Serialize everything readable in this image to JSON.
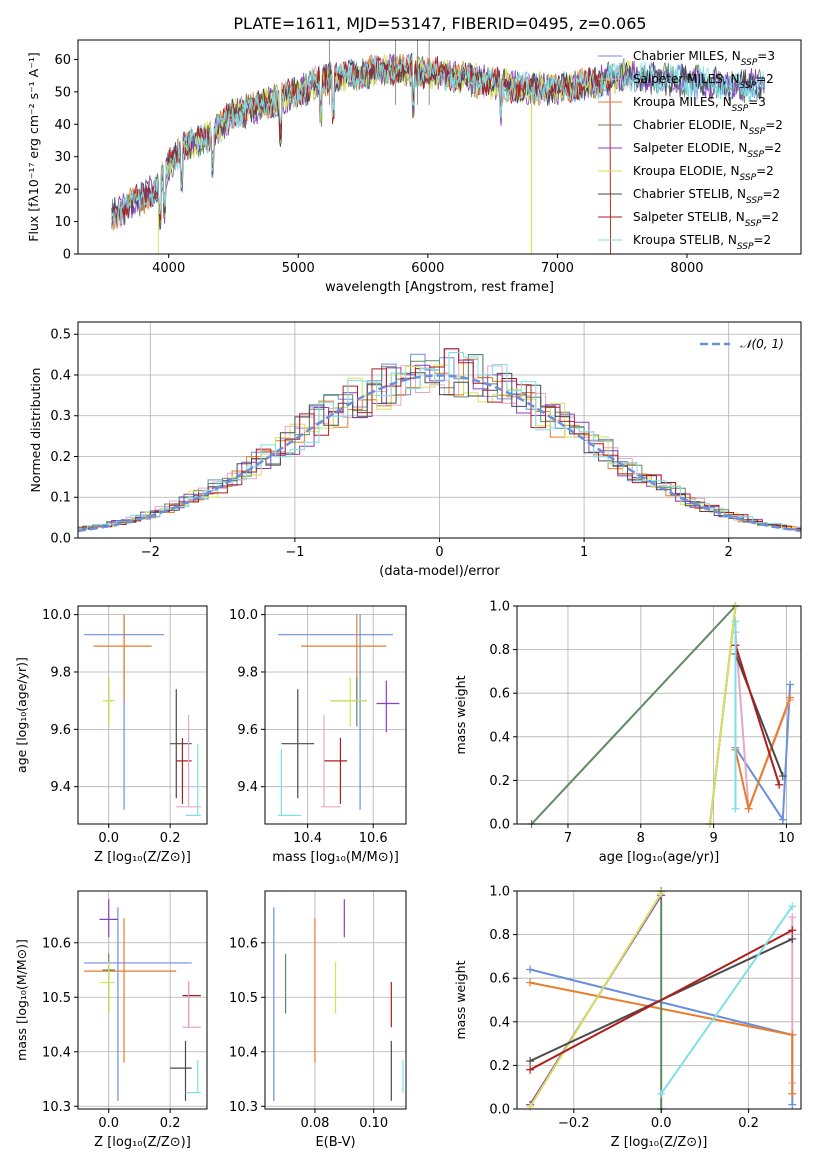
{
  "figure": {
    "title": "PLATE=1611, MJD=53147, FIBERID=0495, z=0.065"
  },
  "colors": {
    "c1": "#6b8fdc",
    "c2": "#e6a8c8",
    "c3": "#e87d2a",
    "c4": "#5e8a62",
    "c5": "#8c3fc0",
    "c6": "#d6e25a",
    "c7": "#4a4a4a",
    "c8": "#b01c1c",
    "c9": "#7fdfe6"
  },
  "chart_data": [
    {
      "id": "spectrum",
      "type": "line",
      "title": "PLATE=1611, MJD=53147, FIBERID=0495, z=0.065",
      "xlabel": "wavelength [Angstrom, rest frame]",
      "ylabel": "Flux [fλ10⁻¹⁷ erg cm⁻² s⁻¹ A⁻¹]",
      "xlim": [
        3300,
        8880
      ],
      "ylim": [
        0,
        66
      ],
      "xticks": [
        "4000",
        "5000",
        "6000",
        "7000",
        "8000"
      ],
      "yticks": [
        "0",
        "10",
        "20",
        "30",
        "40",
        "50",
        "60"
      ],
      "legend_position": "right",
      "series": [
        {
          "name": "Chabrier MILES, N_SSP=3",
          "color_key": "c1"
        },
        {
          "name": "Salpeter MILES, N_SSP=2",
          "color_key": "c2"
        },
        {
          "name": "Kroupa MILES, N_SSP=3",
          "color_key": "c3"
        },
        {
          "name": "Chabrier ELODIE, N_SSP=2",
          "color_key": "c4"
        },
        {
          "name": "Salpeter ELODIE, N_SSP=2",
          "color_key": "c5"
        },
        {
          "name": "Kroupa ELODIE, N_SSP=2",
          "color_key": "c6"
        },
        {
          "name": "Chabrier STELIB, N_SSP=2",
          "color_key": "c7"
        },
        {
          "name": "Salpeter STELIB, N_SSP=2",
          "color_key": "c8"
        },
        {
          "name": "Kroupa STELIB, N_SSP=2",
          "color_key": "c9"
        }
      ],
      "continuum": {
        "x": [
          3550,
          3700,
          3900,
          4000,
          4100,
          4300,
          4500,
          4800,
          5000,
          5200,
          5500,
          5800,
          6000,
          6300,
          6600,
          6800,
          7000,
          7200,
          7500,
          7800,
          8100,
          8400,
          8600
        ],
        "y": [
          12,
          15,
          20,
          27,
          33,
          36,
          43,
          47,
          50,
          54,
          56,
          57,
          56,
          54,
          52,
          51,
          51,
          52,
          55,
          54,
          53,
          52,
          52
        ]
      }
    },
    {
      "id": "residuals",
      "type": "histogram",
      "xlabel": "(data-model)/error",
      "ylabel": "Normed distribution",
      "xlim": [
        -2.5,
        2.5
      ],
      "ylim": [
        0,
        0.53
      ],
      "xticks": [
        "−2",
        "−1",
        "0",
        "1",
        "2"
      ],
      "yticks": [
        "0.0",
        "0.1",
        "0.2",
        "0.3",
        "0.4",
        "0.5"
      ],
      "legend_position": "top-right",
      "reference": {
        "name": "𝒩(0, 1)",
        "mean": 0,
        "sigma": 1
      },
      "bin_width": 0.1
    },
    {
      "id": "z-age",
      "type": "errorbar",
      "xlabel": "Z [log₁₀(Z/Z⊙)]",
      "ylabel": "age  [log₁₀(age/yr)]",
      "xlim": [
        -0.1,
        0.32
      ],
      "ylim": [
        9.27,
        10.03
      ],
      "xticks": [
        "0.0",
        "0.2"
      ],
      "yticks": [
        "9.4",
        "9.6",
        "9.8",
        "10.0"
      ],
      "points": [
        {
          "c": "c1",
          "x": 0.05,
          "xl": -0.08,
          "xh": 0.18,
          "y": 9.93,
          "yl": 9.32,
          "yh": 10.0
        },
        {
          "c": "c3",
          "x": 0.05,
          "xl": -0.05,
          "xh": 0.14,
          "y": 9.89,
          "yl": 9.7,
          "yh": 10.0
        },
        {
          "c": "c4",
          "x": 0.0,
          "xl": -0.01,
          "xh": 0.01,
          "y": 9.7,
          "yl": 9.61,
          "yh": 9.78
        },
        {
          "c": "c6",
          "x": 0.0,
          "xl": -0.02,
          "xh": 0.02,
          "y": 9.7,
          "yl": 9.61,
          "yh": 9.78
        },
        {
          "c": "c7",
          "x": 0.22,
          "xl": 0.2,
          "xh": 0.27,
          "y": 9.55,
          "yl": 9.36,
          "yh": 9.74
        },
        {
          "c": "c8",
          "x": 0.24,
          "xl": 0.22,
          "xh": 0.27,
          "y": 9.49,
          "yl": 9.34,
          "yh": 9.57
        },
        {
          "c": "c2",
          "x": 0.26,
          "xl": 0.22,
          "xh": 0.3,
          "y": 9.33,
          "yl": 9.33,
          "yh": 9.65
        },
        {
          "c": "c9",
          "x": 0.29,
          "xl": 0.25,
          "xh": 0.3,
          "y": 9.3,
          "yl": 9.3,
          "yh": 9.55
        }
      ]
    },
    {
      "id": "mass-age",
      "type": "errorbar",
      "xlabel": "mass [log₁₀(M/M⊙)]",
      "ylabel": "",
      "xlim": [
        10.27,
        10.7
      ],
      "ylim": [
        9.27,
        10.03
      ],
      "xticks": [
        "10.4",
        "10.6"
      ],
      "yticks": [
        "9.4",
        "9.6",
        "9.8",
        "10.0"
      ],
      "points": [
        {
          "c": "c1",
          "x": 10.56,
          "xl": 10.31,
          "xh": 10.66,
          "y": 9.93,
          "yl": 9.32,
          "yh": 10.0
        },
        {
          "c": "c3",
          "x": 10.55,
          "xl": 10.38,
          "xh": 10.64,
          "y": 9.89,
          "yl": 9.7,
          "yh": 10.0
        },
        {
          "c": "c4",
          "x": 10.55,
          "xl": 10.47,
          "xh": 10.58,
          "y": 9.7,
          "yl": 9.61,
          "yh": 9.78
        },
        {
          "c": "c6",
          "x": 10.53,
          "xl": 10.47,
          "xh": 10.58,
          "y": 9.7,
          "yl": 9.61,
          "yh": 9.78
        },
        {
          "c": "c5",
          "x": 10.64,
          "xl": 10.61,
          "xh": 10.68,
          "y": 9.69,
          "yl": 9.59,
          "yh": 9.77
        },
        {
          "c": "c7",
          "x": 10.37,
          "xl": 10.32,
          "xh": 10.42,
          "y": 9.55,
          "yl": 9.36,
          "yh": 9.74
        },
        {
          "c": "c8",
          "x": 10.5,
          "xl": 10.45,
          "xh": 10.52,
          "y": 9.49,
          "yl": 9.34,
          "yh": 9.57
        },
        {
          "c": "c2",
          "x": 10.45,
          "xl": 10.44,
          "xh": 10.5,
          "y": 9.33,
          "yl": 9.33,
          "yh": 9.65
        },
        {
          "c": "c9",
          "x": 10.32,
          "xl": 10.31,
          "xh": 10.38,
          "y": 9.3,
          "yl": 9.3,
          "yh": 9.53
        }
      ]
    },
    {
      "id": "age-weight",
      "type": "line",
      "xlabel": "age  [log₁₀(age/yr)]",
      "ylabel": "mass weight",
      "xlim": [
        6.3,
        10.2
      ],
      "ylim": [
        0,
        1.0
      ],
      "xticks": [
        "7",
        "8",
        "9",
        "10"
      ],
      "yticks": [
        "0.0",
        "0.2",
        "0.4",
        "0.6",
        "0.8",
        "1.0"
      ],
      "series": [
        {
          "c": "c1",
          "x": [
            9.3,
            9.95,
            10.05
          ],
          "y": [
            0.35,
            0.02,
            0.64
          ]
        },
        {
          "c": "c2",
          "x": [
            9.3,
            9.48,
            10.05
          ],
          "y": [
            0.88,
            0.07,
            0.57
          ]
        },
        {
          "c": "c3",
          "x": [
            9.3,
            9.48,
            10.05
          ],
          "y": [
            0.34,
            0.07,
            0.58
          ]
        },
        {
          "c": "c4",
          "x": [
            6.5,
            9.3
          ],
          "y": [
            0.0,
            1.0
          ]
        },
        {
          "c": "c5",
          "x": [
            8.95,
            9.3
          ],
          "y": [
            0.0,
            1.0
          ]
        },
        {
          "c": "c6",
          "x": [
            8.95,
            9.3
          ],
          "y": [
            0.0,
            1.0
          ]
        },
        {
          "c": "c7",
          "x": [
            9.3,
            9.95
          ],
          "y": [
            0.78,
            0.22
          ]
        },
        {
          "c": "c8",
          "x": [
            9.3,
            9.9
          ],
          "y": [
            0.82,
            0.18
          ]
        },
        {
          "c": "c9",
          "x": [
            9.3,
            9.3
          ],
          "y": [
            0.07,
            0.93
          ]
        }
      ]
    },
    {
      "id": "z-mass",
      "type": "errorbar",
      "xlabel": "Z [log₁₀(Z/Z⊙)]",
      "ylabel": "mass [log₁₀(M/M⊙)]",
      "xlim": [
        -0.1,
        0.32
      ],
      "ylim": [
        10.295,
        10.695
      ],
      "xticks": [
        "0.0",
        "0.2"
      ],
      "yticks": [
        "10.3",
        "10.4",
        "10.5",
        "10.6"
      ],
      "points": [
        {
          "c": "c1",
          "x": 0.03,
          "xl": -0.08,
          "xh": 0.27,
          "y": 10.563,
          "yl": 10.31,
          "yh": 10.665
        },
        {
          "c": "c3",
          "x": 0.05,
          "xl": -0.08,
          "xh": 0.22,
          "y": 10.548,
          "yl": 10.38,
          "yh": 10.645
        },
        {
          "c": "c5",
          "x": 0.0,
          "xl": -0.03,
          "xh": 0.03,
          "y": 10.643,
          "yl": 10.61,
          "yh": 10.68
        },
        {
          "c": "c4",
          "x": 0.0,
          "xl": -0.02,
          "xh": 0.02,
          "y": 10.55,
          "yl": 10.47,
          "yh": 10.58
        },
        {
          "c": "c6",
          "x": 0.0,
          "xl": -0.03,
          "xh": 0.02,
          "y": 10.527,
          "yl": 10.47,
          "yh": 10.565
        },
        {
          "c": "c8",
          "x": 0.26,
          "xl": 0.24,
          "xh": 0.3,
          "y": 10.503,
          "yl": 10.445,
          "yh": 10.528
        },
        {
          "c": "c2",
          "x": 0.26,
          "xl": 0.24,
          "xh": 0.3,
          "y": 10.445,
          "yl": 10.445,
          "yh": 10.53
        },
        {
          "c": "c7",
          "x": 0.25,
          "xl": 0.2,
          "xh": 0.27,
          "y": 10.37,
          "yl": 10.31,
          "yh": 10.42
        },
        {
          "c": "c9",
          "x": 0.29,
          "xl": 0.25,
          "xh": 0.3,
          "y": 10.325,
          "yl": 10.325,
          "yh": 10.385
        }
      ]
    },
    {
      "id": "ebv-mass",
      "type": "errorbar",
      "xlabel": "E(B-V)",
      "ylabel": "",
      "xlim": [
        0.063,
        0.111
      ],
      "ylim": [
        10.295,
        10.695
      ],
      "xticks": [
        "0.08",
        "0.10"
      ],
      "yticks": [
        "10.3",
        "10.4",
        "10.5",
        "10.6"
      ],
      "points": [
        {
          "c": "c1",
          "x": 0.066,
          "y": 10.563,
          "yl": 10.31,
          "yh": 10.665
        },
        {
          "c": "c4",
          "x": 0.07,
          "y": 10.55,
          "yl": 10.47,
          "yh": 10.58
        },
        {
          "c": "c3",
          "x": 0.08,
          "y": 10.548,
          "yl": 10.38,
          "yh": 10.645
        },
        {
          "c": "c6",
          "x": 0.087,
          "y": 10.527,
          "yl": 10.47,
          "yh": 10.565
        },
        {
          "c": "c5",
          "x": 0.09,
          "y": 10.643,
          "yl": 10.61,
          "yh": 10.68
        },
        {
          "c": "c8",
          "x": 0.106,
          "y": 10.503,
          "yl": 10.445,
          "yh": 10.528
        },
        {
          "c": "c7",
          "x": 0.106,
          "y": 10.37,
          "yl": 10.31,
          "yh": 10.42
        },
        {
          "c": "c9",
          "x": 0.11,
          "y": 10.325,
          "yl": 10.325,
          "yh": 10.385
        }
      ]
    },
    {
      "id": "z-weight",
      "type": "line",
      "xlabel": "Z [log₁₀(Z/Z⊙)]",
      "ylabel": "mass weight",
      "xlim": [
        -0.33,
        0.32
      ],
      "ylim": [
        0,
        1.0
      ],
      "xticks": [
        "−0.2",
        "0.0",
        "0.2"
      ],
      "yticks": [
        "0.0",
        "0.2",
        "0.4",
        "0.6",
        "0.8",
        "1.0"
      ],
      "series": [
        {
          "c": "c1",
          "x": [
            -0.3,
            0.3,
            0.3
          ],
          "y": [
            0.64,
            0.34,
            0.02
          ]
        },
        {
          "c": "c2",
          "x": [
            0.3,
            0.3
          ],
          "y": [
            0.88,
            0.12
          ]
        },
        {
          "c": "c3",
          "x": [
            -0.3,
            0.3,
            0.3
          ],
          "y": [
            0.58,
            0.34,
            0.07
          ]
        },
        {
          "c": "c4",
          "x": [
            0.0,
            0.0
          ],
          "y": [
            0.0,
            1.0
          ]
        },
        {
          "c": "c5",
          "x": [
            -0.3,
            0.0
          ],
          "y": [
            0.02,
            0.98
          ]
        },
        {
          "c": "c6",
          "x": [
            -0.3,
            0.0
          ],
          "y": [
            0.01,
            0.99
          ]
        },
        {
          "c": "c7",
          "x": [
            -0.3,
            0.3
          ],
          "y": [
            0.22,
            0.78
          ]
        },
        {
          "c": "c8",
          "x": [
            -0.3,
            0.3
          ],
          "y": [
            0.18,
            0.82
          ]
        },
        {
          "c": "c9",
          "x": [
            0.0,
            0.3
          ],
          "y": [
            0.07,
            0.93
          ]
        }
      ]
    }
  ]
}
